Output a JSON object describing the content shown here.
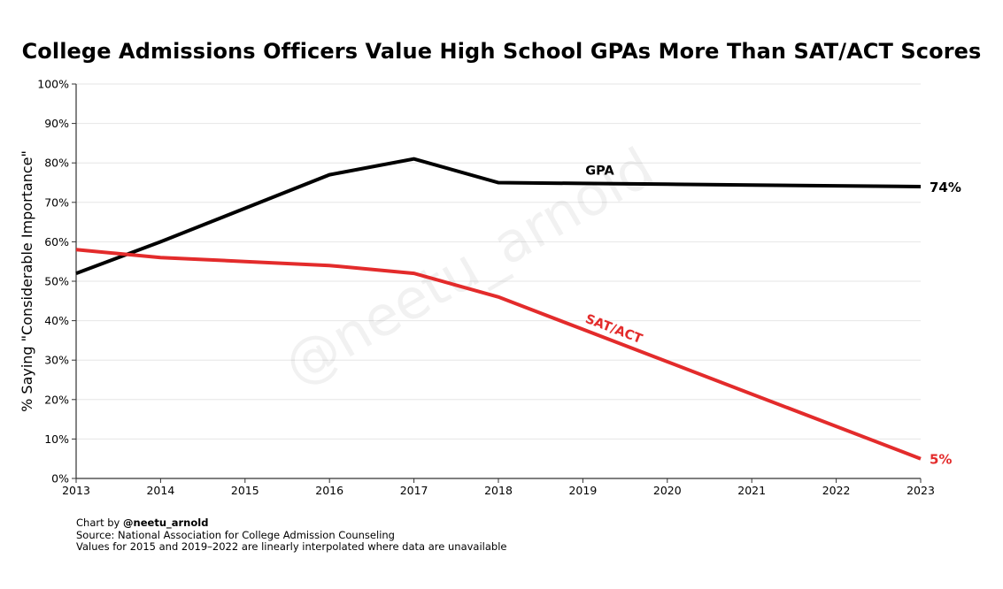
{
  "chart_data": {
    "type": "line",
    "title": "College Admissions Officers Value High School GPAs More Than SAT/ACT Scores",
    "xlabel": "",
    "ylabel": "% Saying \"Considerable Importance\"",
    "x": [
      2013,
      2014,
      2015,
      2016,
      2017,
      2018,
      2019,
      2020,
      2021,
      2022,
      2023
    ],
    "xlim": [
      2013,
      2023
    ],
    "ylim": [
      0,
      100
    ],
    "x_ticks": [
      "2013",
      "2014",
      "2015",
      "2016",
      "2017",
      "2018",
      "2019",
      "2020",
      "2021",
      "2022",
      "2023"
    ],
    "y_ticks": [
      "0%",
      "10%",
      "20%",
      "30%",
      "40%",
      "50%",
      "60%",
      "70%",
      "80%",
      "90%",
      "100%"
    ],
    "grid": true,
    "series": [
      {
        "name": "GPA",
        "color": "#000000",
        "label": "GPA",
        "end_label": "74%",
        "values": [
          52,
          60,
          68.5,
          77,
          81,
          75,
          74.8,
          74.6,
          74.4,
          74.2,
          74
        ]
      },
      {
        "name": "SAT/ACT",
        "color": "#e32b2b",
        "label": "SAT/ACT",
        "end_label": "5%",
        "values": [
          58,
          56,
          55,
          54,
          52,
          46,
          37.8,
          29.6,
          21.4,
          13.2,
          5
        ]
      }
    ],
    "watermark": "@neetu_arnold"
  },
  "footer": {
    "credit_prefix": "Chart by ",
    "credit_handle": "@neetu_arnold",
    "source": "Source: National Association for College Admission Counseling",
    "note": "Values for 2015 and 2019–2022 are linearly interpolated where data are unavailable"
  }
}
